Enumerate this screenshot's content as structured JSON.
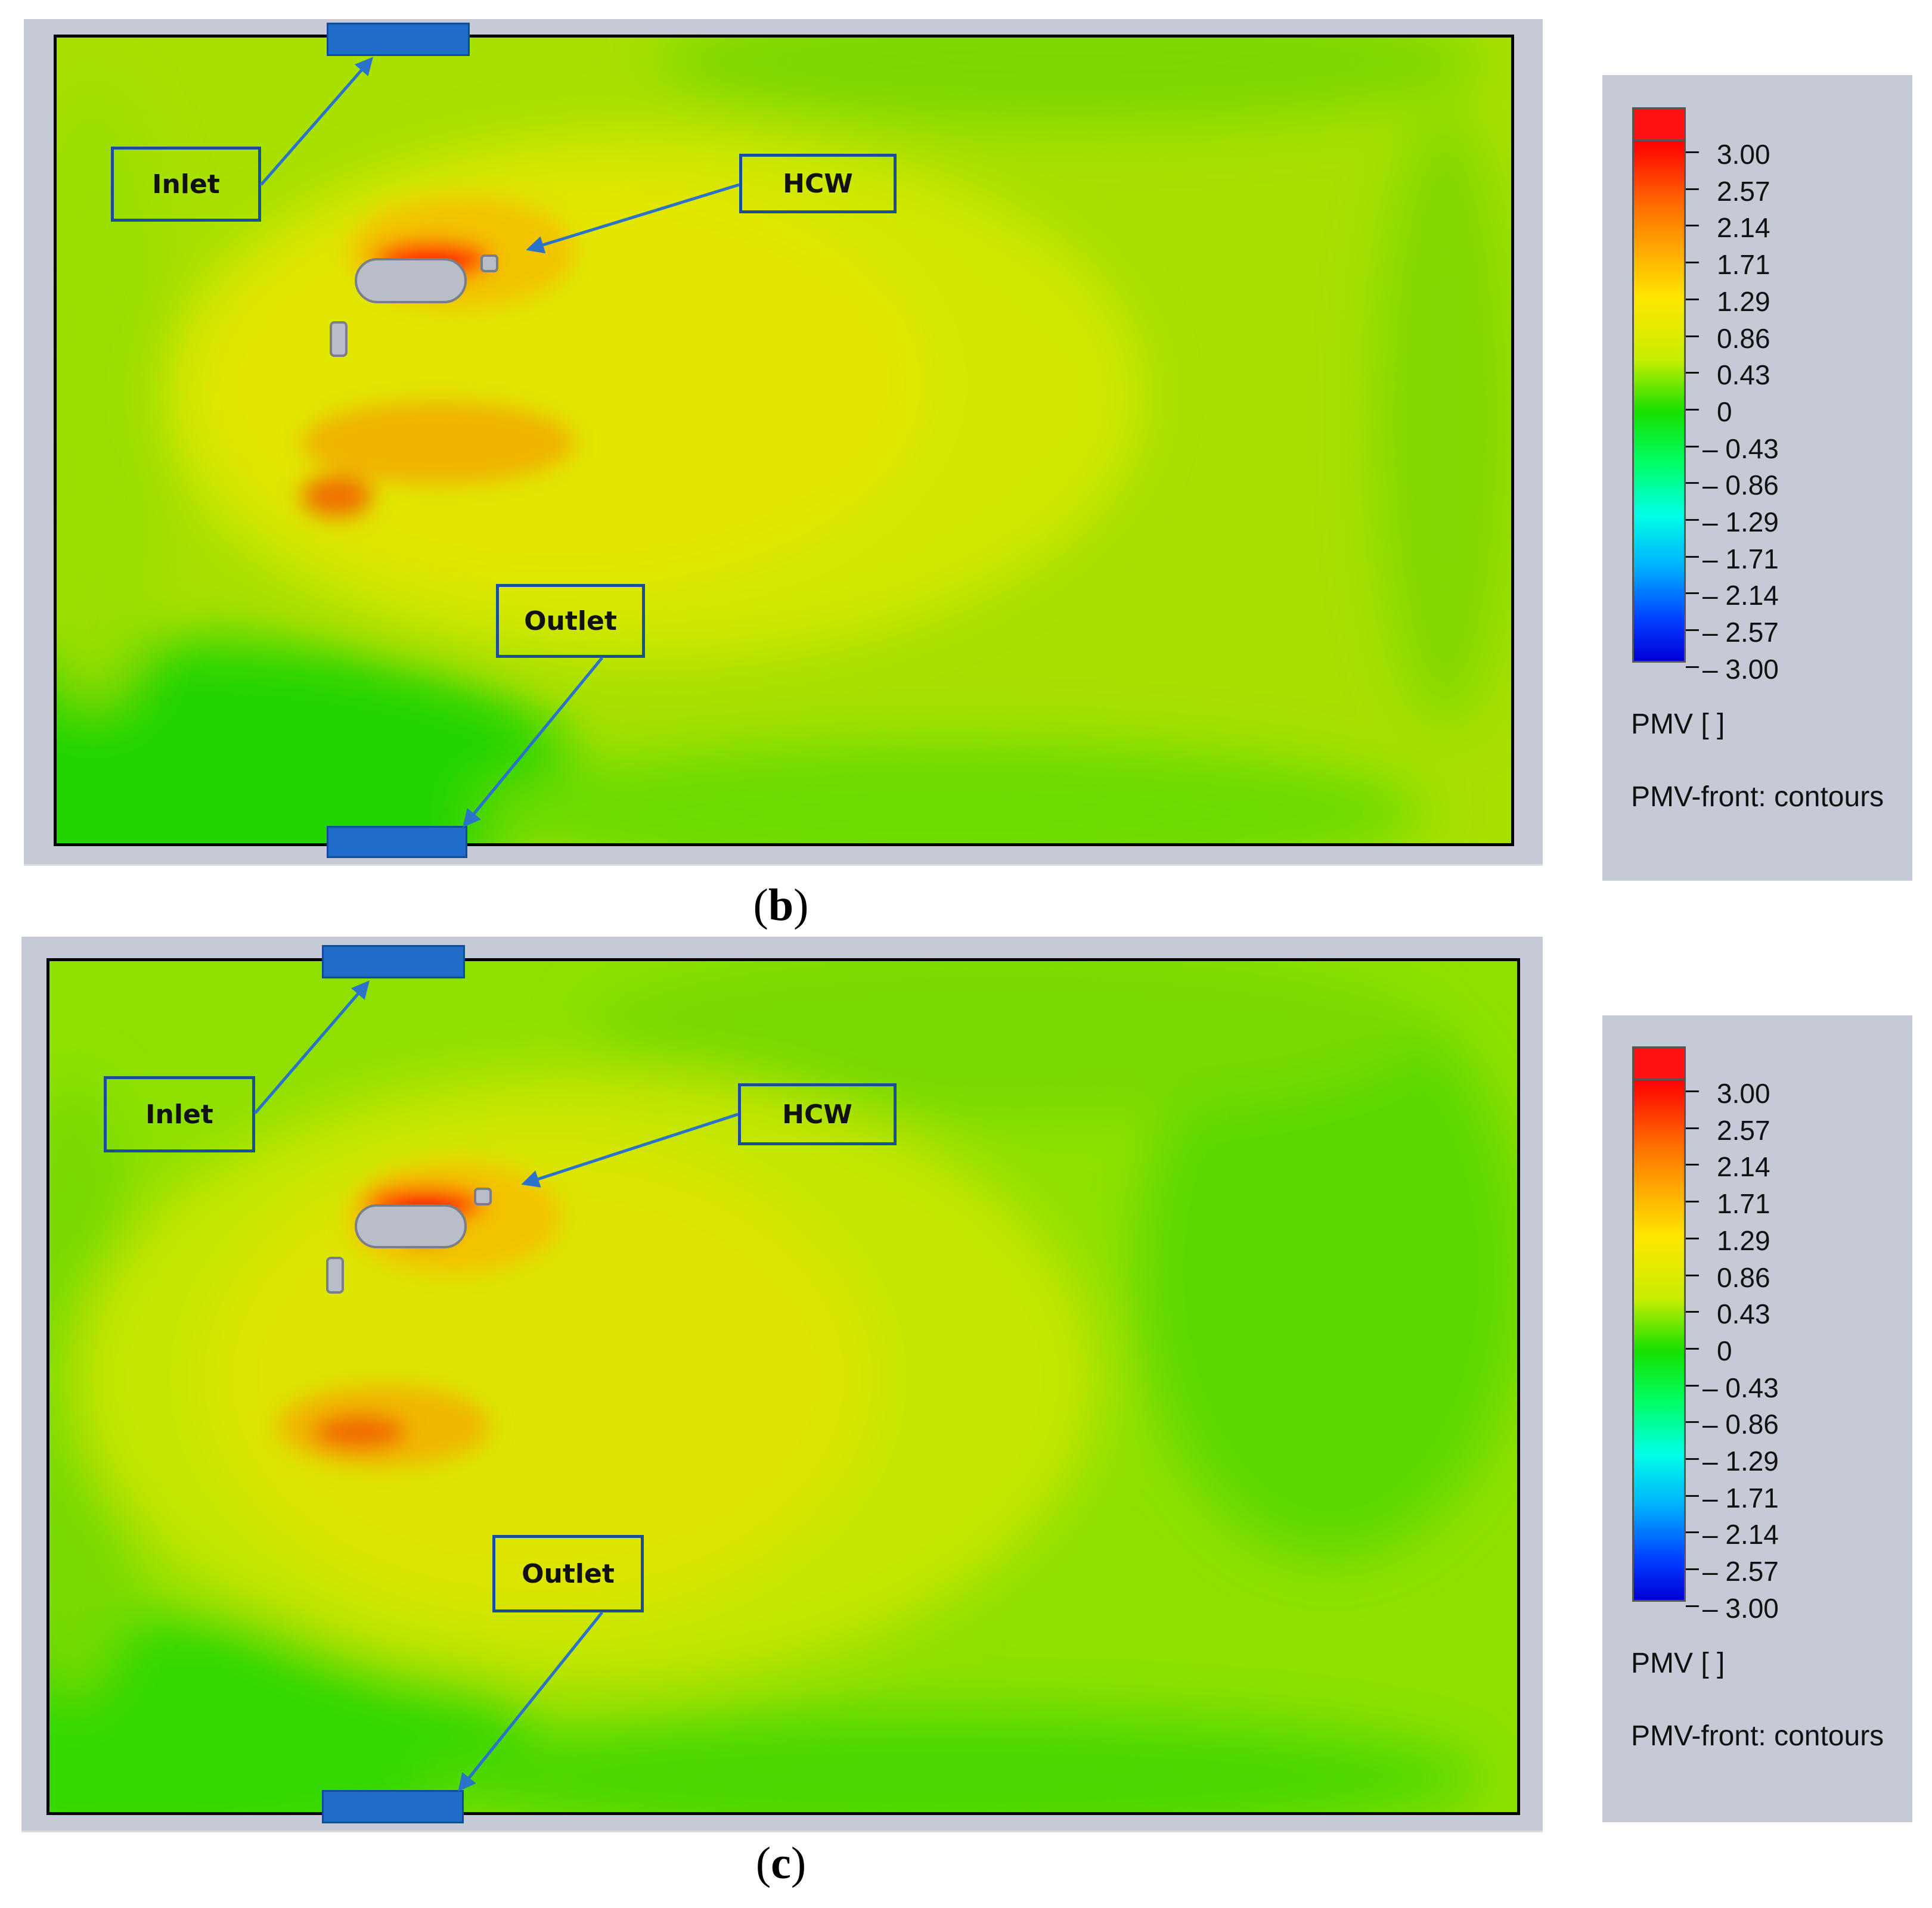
{
  "panels": [
    {
      "caption": "(b)",
      "caption_letter": "b",
      "labels": {
        "inlet": "Inlet",
        "hcw": "HCW",
        "outlet": "Outlet"
      }
    },
    {
      "caption": "(c)",
      "caption_letter": "c",
      "labels": {
        "inlet": "Inlet",
        "hcw": "HCW",
        "outlet": "Outlet"
      }
    }
  ],
  "legend": {
    "ticks": [
      "3.00",
      "2.57",
      "2.14",
      "1.71",
      "1.29",
      "0.86",
      "0.43",
      "0",
      "– 0.43",
      "– 0.86",
      "– 1.29",
      "– 1.71",
      "– 2.14",
      "– 2.57",
      "– 3.00"
    ],
    "quantity": "PMV [ ]",
    "plot_name": "PMV-front: contours"
  },
  "colors": {
    "vent": "#1f6dc8",
    "callout_border": "#1a4d9a",
    "arrow": "#2a73c8",
    "background_panel": "#c5cad6"
  }
}
